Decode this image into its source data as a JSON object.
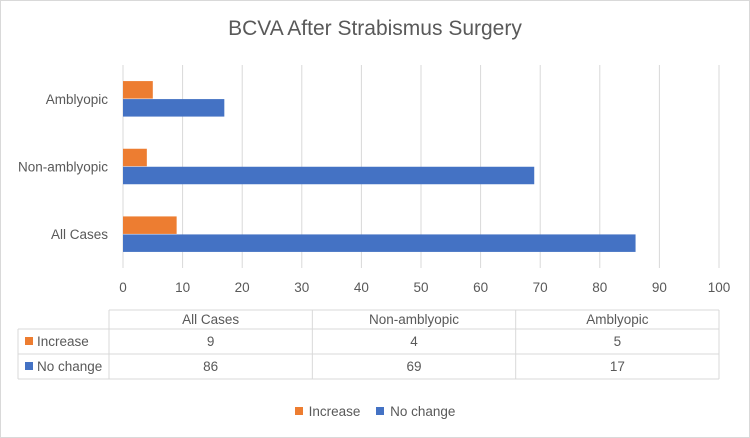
{
  "chart_data": {
    "type": "bar",
    "orientation": "horizontal",
    "title": "BCVA After Strabismus Surgery",
    "categories": [
      "All Cases",
      "Non-amblyopic",
      "Amblyopic"
    ],
    "series": [
      {
        "name": "Increase",
        "values": [
          9,
          4,
          5
        ],
        "color": "#ED7D31"
      },
      {
        "name": "No change",
        "values": [
          86,
          69,
          17
        ],
        "color": "#4472C4"
      }
    ],
    "xlim": [
      0,
      100
    ],
    "xticks": [
      0,
      10,
      20,
      30,
      40,
      50,
      60,
      70,
      80,
      90,
      100
    ],
    "grid": "vertical",
    "legend": "bottom",
    "data_table": true
  }
}
